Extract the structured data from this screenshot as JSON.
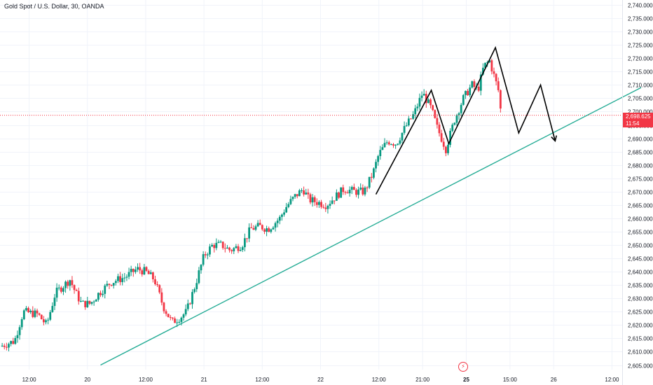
{
  "title": "Gold Spot / U.S. Dollar, 30, OANDA",
  "price_tag": {
    "price": "2,698.625",
    "countdown": "11:54"
  },
  "event_icon": "lightning-icon",
  "colors": {
    "up": "#089981",
    "down": "#f23645",
    "trendline": "#22ab94",
    "pattern": "#000000"
  },
  "chart_data": {
    "type": "candlestick",
    "ylim": [
      2605,
      2740
    ],
    "y_ticks": [
      "2,605.000",
      "2,610.000",
      "2,615.000",
      "2,620.000",
      "2,625.000",
      "2,630.000",
      "2,635.000",
      "2,640.000",
      "2,645.000",
      "2,650.000",
      "2,655.000",
      "2,660.000",
      "2,665.000",
      "2,670.000",
      "2,675.000",
      "2,680.000",
      "2,685.000",
      "2,690.000",
      "2,695.000",
      "2,700.000",
      "2,705.000",
      "2,710.000",
      "2,715.000",
      "2,720.000",
      "2,725.000",
      "2,730.000",
      "2,735.000",
      "2,740.000"
    ],
    "x_ticks": [
      {
        "label": "12:00",
        "pos": 1
      },
      {
        "label": "20",
        "pos": 3
      },
      {
        "label": "12:00",
        "pos": 5
      },
      {
        "label": "21",
        "pos": 7
      },
      {
        "label": "12:00",
        "pos": 9
      },
      {
        "label": "22",
        "pos": 11
      },
      {
        "label": "12:00",
        "pos": 13
      },
      {
        "label": "21:00",
        "pos": 14.5
      },
      {
        "label": "25",
        "pos": 16
      },
      {
        "label": "15:00",
        "pos": 17.5
      },
      {
        "label": "26",
        "pos": 19
      },
      {
        "label": "12:00",
        "pos": 21
      }
    ],
    "x_range": [
      0,
      22.6
    ],
    "last_price": 2698.625,
    "close_path": [
      [
        0.0,
        2612
      ],
      [
        0.5,
        2614
      ],
      [
        0.8,
        2625
      ],
      [
        1.3,
        2624
      ],
      [
        1.6,
        2620
      ],
      [
        1.9,
        2632
      ],
      [
        2.4,
        2637
      ],
      [
        2.6,
        2632
      ],
      [
        2.8,
        2628
      ],
      [
        3.1,
        2628
      ],
      [
        3.4,
        2632
      ],
      [
        3.8,
        2636
      ],
      [
        4.3,
        2638
      ],
      [
        4.7,
        2641
      ],
      [
        5.0,
        2640
      ],
      [
        5.3,
        2637
      ],
      [
        5.6,
        2627
      ],
      [
        5.9,
        2621
      ],
      [
        6.2,
        2623
      ],
      [
        6.4,
        2625
      ],
      [
        6.7,
        2635
      ],
      [
        7.0,
        2646
      ],
      [
        7.3,
        2650
      ],
      [
        7.6,
        2650
      ],
      [
        7.9,
        2648
      ],
      [
        8.3,
        2650
      ],
      [
        8.6,
        2656
      ],
      [
        8.9,
        2657
      ],
      [
        9.2,
        2656
      ],
      [
        9.6,
        2660
      ],
      [
        9.8,
        2664
      ],
      [
        10.1,
        2668
      ],
      [
        10.4,
        2671
      ],
      [
        10.6,
        2667
      ],
      [
        10.9,
        2666
      ],
      [
        11.2,
        2665
      ],
      [
        11.5,
        2668
      ],
      [
        11.8,
        2671
      ],
      [
        12.2,
        2670
      ],
      [
        12.5,
        2670
      ],
      [
        12.8,
        2677
      ],
      [
        13.0,
        2684
      ],
      [
        13.3,
        2689
      ],
      [
        13.6,
        2688
      ],
      [
        13.9,
        2694
      ],
      [
        14.2,
        2699
      ],
      [
        14.5,
        2707
      ],
      [
        14.8,
        2701
      ],
      [
        15.0,
        2694
      ],
      [
        15.3,
        2686
      ],
      [
        15.6,
        2697
      ],
      [
        15.9,
        2705
      ],
      [
        16.2,
        2710
      ],
      [
        16.4,
        2708
      ],
      [
        16.6,
        2717
      ],
      [
        16.8,
        2719
      ],
      [
        17.1,
        2708
      ],
      [
        17.2,
        2698.6
      ]
    ],
    "series": [
      {
        "name": "",
        "kind": "trendline",
        "points": [
          [
            3.45,
            2605
          ],
          [
            22.0,
            2709
          ]
        ]
      },
      {
        "name": "",
        "kind": "pattern",
        "points": [
          [
            12.9,
            2669
          ],
          [
            14.8,
            2708
          ],
          [
            15.4,
            2688
          ],
          [
            17.0,
            2724
          ],
          [
            17.8,
            2692
          ],
          [
            18.55,
            2710
          ],
          [
            19.05,
            2689
          ]
        ],
        "arrow": true
      }
    ]
  }
}
